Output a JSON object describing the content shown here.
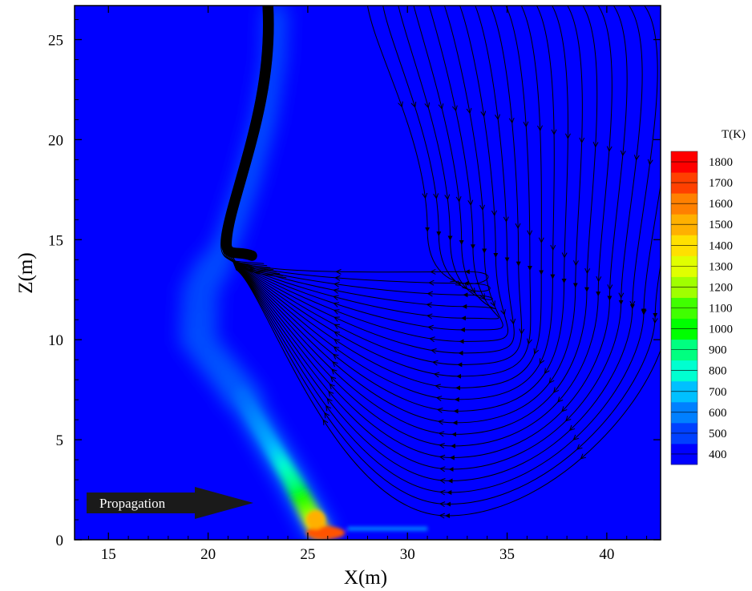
{
  "chart_data": {
    "type": "heatmap",
    "title": "",
    "xlabel": "X(m)",
    "ylabel": "Z(m)",
    "xlim": [
      13.3,
      42.7
    ],
    "ylim": [
      0,
      26.7
    ],
    "x_ticks": [
      15,
      20,
      25,
      30,
      35,
      40
    ],
    "y_ticks": [
      0,
      5,
      10,
      15,
      20,
      25
    ],
    "colorbar": {
      "title": "T(K)",
      "range": [
        350,
        1850
      ],
      "levels": [
        400,
        500,
        600,
        700,
        800,
        900,
        1000,
        1100,
        1200,
        1300,
        1400,
        1500,
        1600,
        1700,
        1800
      ],
      "colors": [
        "#0000ff",
        "#0040ff",
        "#0080ff",
        "#00c0ff",
        "#00ffd0",
        "#00ff80",
        "#00ff00",
        "#40ff00",
        "#a0ff00",
        "#e0ff00",
        "#ffe000",
        "#ffb000",
        "#ff8000",
        "#ff4000",
        "#ff0000"
      ]
    },
    "background_temperature_K": 380,
    "plume_centerline": [
      {
        "x": 25.6,
        "z": 0.4,
        "T": 1550
      },
      {
        "x": 25.0,
        "z": 1.5,
        "T": 1150
      },
      {
        "x": 24.2,
        "z": 3.0,
        "T": 850
      },
      {
        "x": 23.0,
        "z": 5.0,
        "T": 620
      },
      {
        "x": 21.5,
        "z": 7.5,
        "T": 500
      },
      {
        "x": 19.5,
        "z": 10.0,
        "T": 470
      },
      {
        "x": 19.6,
        "z": 12.5,
        "T": 460
      },
      {
        "x": 21.0,
        "z": 15.0,
        "T": 470
      },
      {
        "x": 22.0,
        "z": 18.0,
        "T": 470
      },
      {
        "x": 22.8,
        "z": 21.0,
        "T": 470
      },
      {
        "x": 23.3,
        "z": 24.0,
        "T": 460
      },
      {
        "x": 23.4,
        "z": 26.7,
        "T": 460
      }
    ],
    "streamlines": "closed_loops_converging_to_plume",
    "annotation": {
      "text": "Propagation",
      "direction": "right"
    }
  }
}
